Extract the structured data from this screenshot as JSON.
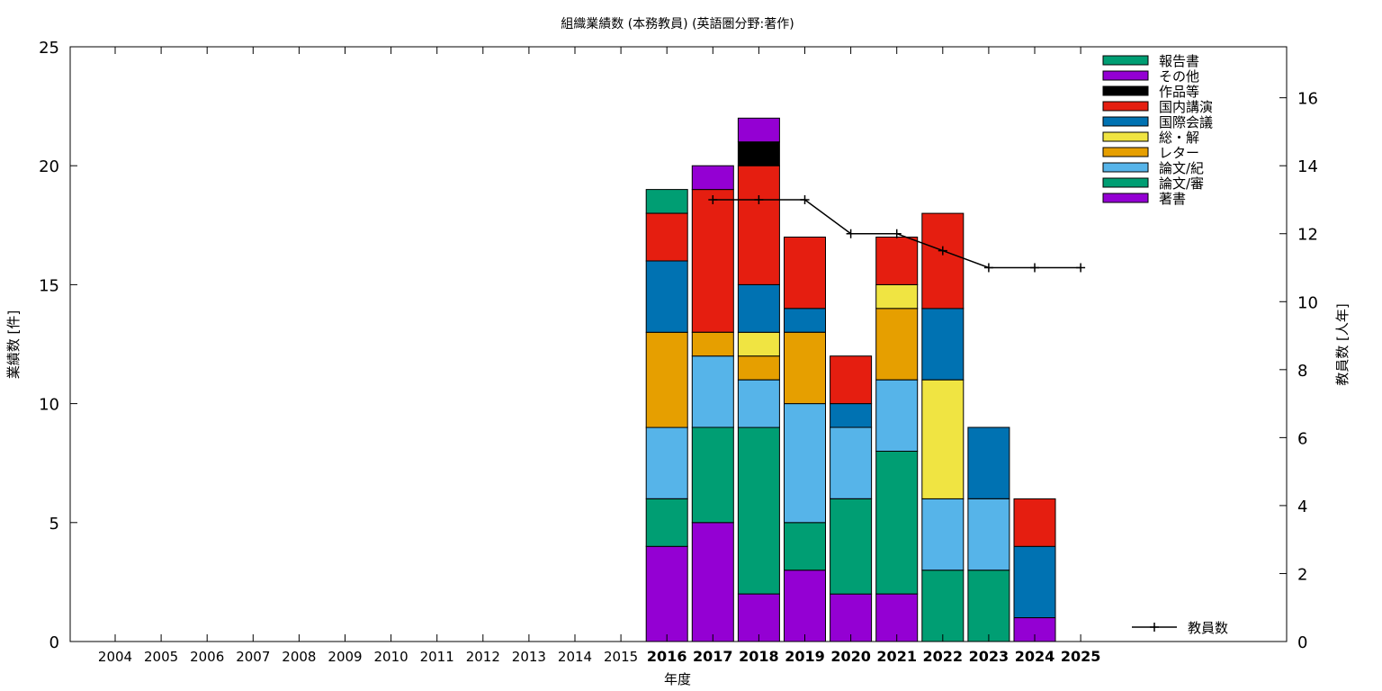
{
  "chart_data": {
    "type": "bar",
    "stacked": true,
    "title": "組織業績数 (本務教員) (英語圏分野:著作)",
    "xlabel": "年度",
    "ylabel": "業績数 [件]",
    "y2label": "教員数 [人年]",
    "ylim": [
      0,
      25
    ],
    "y2lim": [
      0,
      17.5
    ],
    "yticks": [
      0,
      5,
      10,
      15,
      20,
      25
    ],
    "y2ticks": [
      0,
      2,
      4,
      6,
      8,
      10,
      12,
      14,
      16
    ],
    "categories": [
      "2004",
      "2005",
      "2006",
      "2007",
      "2008",
      "2009",
      "2010",
      "2011",
      "2012",
      "2013",
      "2014",
      "2015",
      "2016",
      "2017",
      "2018",
      "2019",
      "2020",
      "2021",
      "2022",
      "2023",
      "2024",
      "2025"
    ],
    "bold_categories": [
      "2016",
      "2017",
      "2018",
      "2019",
      "2020",
      "2021",
      "2022",
      "2023",
      "2024",
      "2025"
    ],
    "grid": false,
    "legend_position": "top-right",
    "series": [
      {
        "name": "著書",
        "color": "#9400d3",
        "values": [
          0,
          0,
          0,
          0,
          0,
          0,
          0,
          0,
          0,
          0,
          0,
          0,
          4,
          5,
          2,
          3,
          2,
          2,
          0,
          0,
          1,
          0
        ]
      },
      {
        "name": "論文/審",
        "color": "#009e73",
        "values": [
          0,
          0,
          0,
          0,
          0,
          0,
          0,
          0,
          0,
          0,
          0,
          0,
          2,
          4,
          7,
          2,
          4,
          6,
          3,
          3,
          0,
          0
        ]
      },
      {
        "name": "論文/紀",
        "color": "#56b4e9",
        "values": [
          0,
          0,
          0,
          0,
          0,
          0,
          0,
          0,
          0,
          0,
          0,
          0,
          3,
          3,
          2,
          5,
          3,
          3,
          3,
          3,
          0,
          0
        ]
      },
      {
        "name": "レター",
        "color": "#e69f00",
        "values": [
          0,
          0,
          0,
          0,
          0,
          0,
          0,
          0,
          0,
          0,
          0,
          0,
          4,
          1,
          1,
          3,
          0,
          3,
          0,
          0,
          0,
          0
        ]
      },
      {
        "name": "総・解",
        "color": "#f0e442",
        "values": [
          0,
          0,
          0,
          0,
          0,
          0,
          0,
          0,
          0,
          0,
          0,
          0,
          0,
          0,
          1,
          0,
          0,
          1,
          5,
          0,
          0,
          0
        ]
      },
      {
        "name": "国際会議",
        "color": "#0072b2",
        "values": [
          0,
          0,
          0,
          0,
          0,
          0,
          0,
          0,
          0,
          0,
          0,
          0,
          3,
          0,
          2,
          1,
          1,
          0,
          3,
          3,
          3,
          0
        ]
      },
      {
        "name": "国内講演",
        "color": "#e51e10",
        "values": [
          0,
          0,
          0,
          0,
          0,
          0,
          0,
          0,
          0,
          0,
          0,
          0,
          2,
          6,
          5,
          3,
          2,
          2,
          4,
          0,
          2,
          0
        ]
      },
      {
        "name": "作品等",
        "color": "#000000",
        "values": [
          0,
          0,
          0,
          0,
          0,
          0,
          0,
          0,
          0,
          0,
          0,
          0,
          0,
          0,
          1,
          0,
          0,
          0,
          0,
          0,
          0,
          0
        ]
      },
      {
        "name": "その他",
        "color": "#9400d3",
        "values": [
          0,
          0,
          0,
          0,
          0,
          0,
          0,
          0,
          0,
          0,
          0,
          0,
          0,
          1,
          1,
          0,
          0,
          0,
          0,
          0,
          0,
          0
        ]
      },
      {
        "name": "報告書",
        "color": "#009e73",
        "values": [
          0,
          0,
          0,
          0,
          0,
          0,
          0,
          0,
          0,
          0,
          0,
          0,
          1,
          0,
          0,
          0,
          0,
          0,
          0,
          0,
          0,
          0
        ]
      }
    ],
    "line_series": {
      "name": "教員数",
      "color": "#000000",
      "axis": "y2",
      "x": [
        "2017",
        "2018",
        "2019",
        "2020",
        "2021",
        "2022",
        "2023",
        "2024",
        "2025"
      ],
      "values": [
        13,
        13,
        13,
        12,
        12,
        11.5,
        11,
        11,
        11
      ]
    }
  }
}
